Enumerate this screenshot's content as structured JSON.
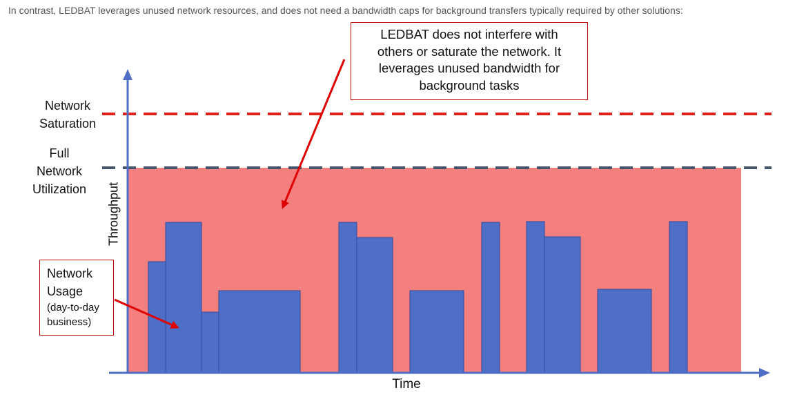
{
  "caption": "In contrast, LEDBAT leverages unused network resources, and does not need a bandwidth caps for background transfers typically required by other solutions:",
  "labels": {
    "network_saturation": [
      "Network",
      "Saturation"
    ],
    "full_network_utilization": [
      "Full",
      "Network",
      "Utilization"
    ]
  },
  "axes": {
    "x_label": "Time",
    "y_label": "Throughput"
  },
  "callouts": {
    "ledbat": [
      "LEDBAT does not interfere with",
      "others or saturate the network.  It",
      "leverages unused bandwidth for",
      "background tasks"
    ],
    "usage_title": [
      "Network",
      "Usage"
    ],
    "usage_subtitle": [
      "(day-to-day",
      "business)"
    ]
  },
  "colors": {
    "saturation_line": "#e0201c",
    "utilization_line": "#44546a",
    "ledbat_fill": "#f47f7f",
    "usage_bars": "#4f6fc7",
    "axis": "#4f6fc7",
    "arrow": "#e00000"
  }
}
